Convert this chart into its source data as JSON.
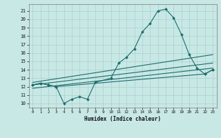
{
  "xlabel": "Humidex (Indice chaleur)",
  "xlim": [
    -0.5,
    23.5
  ],
  "ylim": [
    9.5,
    21.8
  ],
  "xticks": [
    0,
    1,
    2,
    3,
    4,
    5,
    6,
    7,
    8,
    9,
    10,
    11,
    12,
    13,
    14,
    15,
    16,
    17,
    18,
    19,
    20,
    21,
    22,
    23
  ],
  "yticks": [
    10,
    11,
    12,
    13,
    14,
    15,
    16,
    17,
    18,
    19,
    20,
    21
  ],
  "background_color": "#c8e8e5",
  "grid_color": "#aad0cc",
  "line_color": "#1a6b6b",
  "curve1_x": [
    0,
    1,
    2,
    3,
    4,
    5,
    6,
    7,
    8,
    10,
    11,
    12,
    13,
    14,
    15,
    16,
    17,
    18,
    19,
    20,
    21,
    22,
    23
  ],
  "curve1_y": [
    12.2,
    12.4,
    12.2,
    12.0,
    10.0,
    10.5,
    10.8,
    10.5,
    12.5,
    13.0,
    14.8,
    15.5,
    16.5,
    18.5,
    19.5,
    21.0,
    21.2,
    20.2,
    18.2,
    15.8,
    14.2,
    13.5,
    14.0
  ],
  "curve2_x": [
    0,
    1,
    2,
    3,
    22,
    23
  ],
  "curve2_y": [
    12.2,
    12.4,
    12.2,
    12.0,
    13.5,
    14.0
  ],
  "trend1_x": [
    0,
    23
  ],
  "trend1_y": [
    12.5,
    15.8
  ],
  "trend2_x": [
    0,
    23
  ],
  "trend2_y": [
    12.2,
    14.8
  ],
  "trend3_x": [
    0,
    23
  ],
  "trend3_y": [
    11.8,
    14.2
  ]
}
